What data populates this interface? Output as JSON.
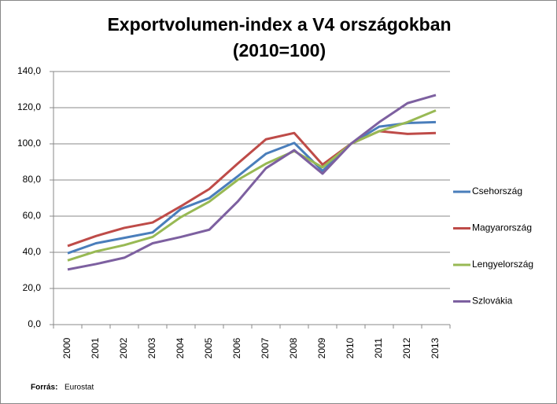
{
  "chart_data": {
    "type": "line",
    "title": "Exportvolumen-index a V4 országokban (2010=100)",
    "categories": [
      "2000",
      "2001",
      "2002",
      "2003",
      "2004",
      "2005",
      "2006",
      "2007",
      "2008",
      "2009",
      "2010",
      "2011",
      "2012",
      "2013"
    ],
    "series": [
      {
        "name": "Csehország",
        "color": "#4a7ebb",
        "values": [
          39.5,
          45,
          48,
          51,
          64,
          70,
          82,
          94.5,
          100.5,
          85,
          100,
          109.5,
          111.5,
          112
        ]
      },
      {
        "name": "Magyarország",
        "color": "#be4b48",
        "values": [
          43.5,
          49,
          53.5,
          56.5,
          65.5,
          75,
          89,
          102.5,
          106,
          88.5,
          100,
          107,
          105.5,
          106
        ]
      },
      {
        "name": "Lengyelország",
        "color": "#98b954",
        "values": [
          35.5,
          40.5,
          44,
          48.5,
          59.5,
          68,
          80,
          89,
          96,
          87,
          100,
          107,
          112,
          118.5
        ]
      },
      {
        "name": "Szlovákia",
        "color": "#7d60a0",
        "values": [
          30.5,
          33.5,
          37,
          45,
          48.5,
          52.5,
          68,
          86.5,
          96.5,
          83.5,
          100,
          112,
          122.5,
          127
        ]
      }
    ],
    "ylim": [
      0,
      140
    ],
    "yticks": [
      {
        "value": 0,
        "label": "0,0"
      },
      {
        "value": 20,
        "label": "20,0"
      },
      {
        "value": 40,
        "label": "40,0"
      },
      {
        "value": 60,
        "label": "60,0"
      },
      {
        "value": 80,
        "label": "80,0"
      },
      {
        "value": 100,
        "label": "100,0"
      },
      {
        "value": 120,
        "label": "120,0"
      },
      {
        "value": 140,
        "label": "140,0"
      }
    ],
    "grid": true,
    "legend": "right",
    "source_label": "Forrás:",
    "source": "Eurostat"
  }
}
